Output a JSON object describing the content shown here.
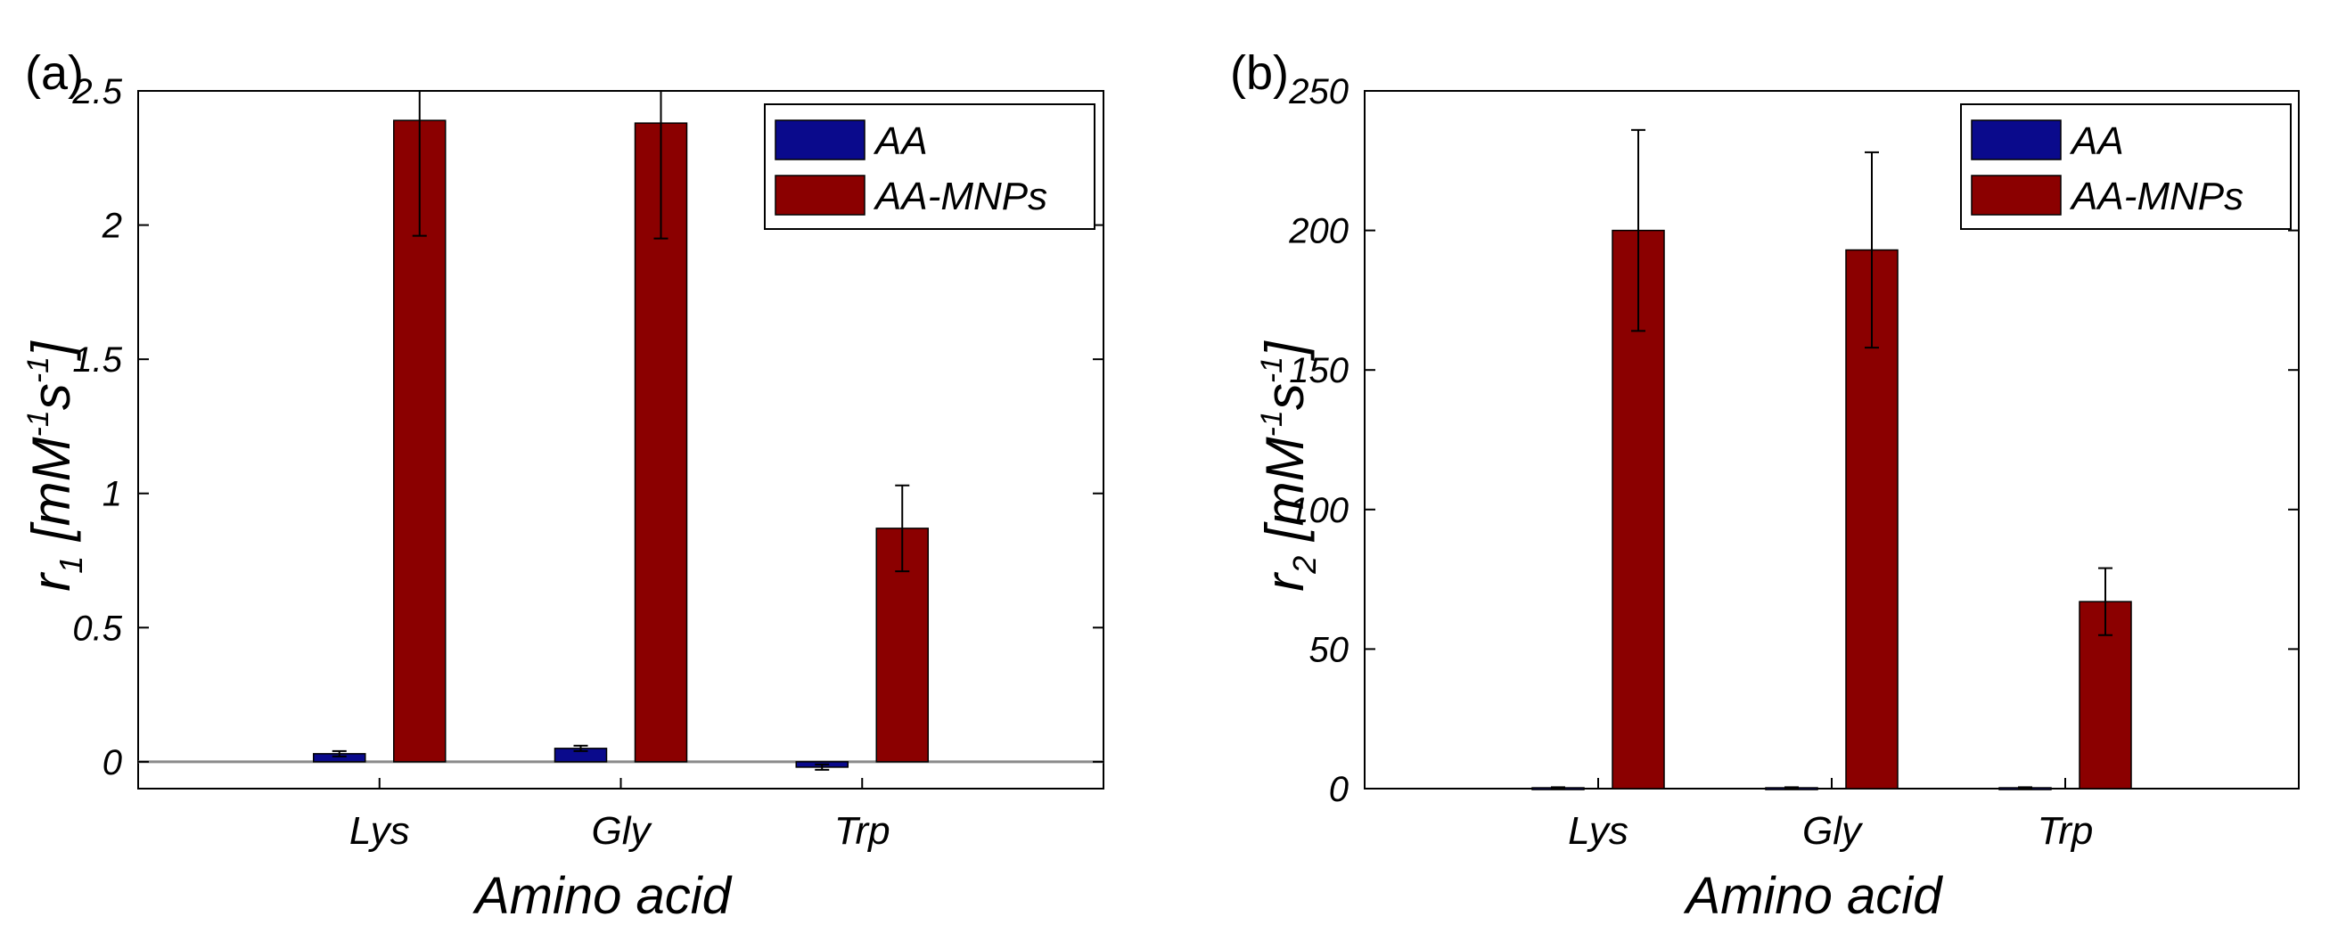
{
  "chart_data": [
    {
      "type": "bar",
      "panel_label": "(a)",
      "categories": [
        "Lys",
        "Gly",
        "Trp"
      ],
      "series": [
        {
          "name": "AA",
          "color": "#0a0a8c",
          "values": [
            0.03,
            0.05,
            -0.02
          ],
          "errors": [
            0.01,
            0.01,
            0.01
          ]
        },
        {
          "name": "AA-MNPs",
          "color": "#8b0000",
          "values": [
            2.39,
            2.38,
            0.87
          ],
          "errors": [
            0.43,
            0.43,
            0.16
          ]
        }
      ],
      "ylabel": {
        "base": "r",
        "sub": "1",
        "rest_a": " [mM",
        "sup1": "-1",
        "rest_b": "s",
        "sup2": "-1",
        "rest_c": "]"
      },
      "xlabel": "Amino acid",
      "ylim": [
        -0.1,
        2.5
      ],
      "yticks": [
        0,
        0.5,
        1,
        1.5,
        2,
        2.5
      ],
      "yticklabels": [
        "0",
        "0.5",
        "1",
        "1.5",
        "2",
        "2.5"
      ],
      "zero_line": true
    },
    {
      "type": "bar",
      "panel_label": "(b)",
      "categories": [
        "Lys",
        "Gly",
        "Trp"
      ],
      "series": [
        {
          "name": "AA",
          "color": "#0a0a8c",
          "values": [
            0.3,
            0.3,
            0.3
          ],
          "errors": [
            0.2,
            0.2,
            0.2
          ]
        },
        {
          "name": "AA-MNPs",
          "color": "#8b0000",
          "values": [
            200,
            193,
            67
          ],
          "errors": [
            36,
            35,
            12
          ]
        }
      ],
      "ylabel": {
        "base": "r",
        "sub": "2",
        "rest_a": " [mM",
        "sup1": "-1",
        "rest_b": "s",
        "sup2": "-1",
        "rest_c": "]"
      },
      "xlabel": "Amino acid",
      "ylim": [
        0,
        250
      ],
      "yticks": [
        0,
        50,
        100,
        150,
        200,
        250
      ],
      "yticklabels": [
        "0",
        "50",
        "100",
        "150",
        "200",
        "250"
      ],
      "zero_line": false
    }
  ]
}
